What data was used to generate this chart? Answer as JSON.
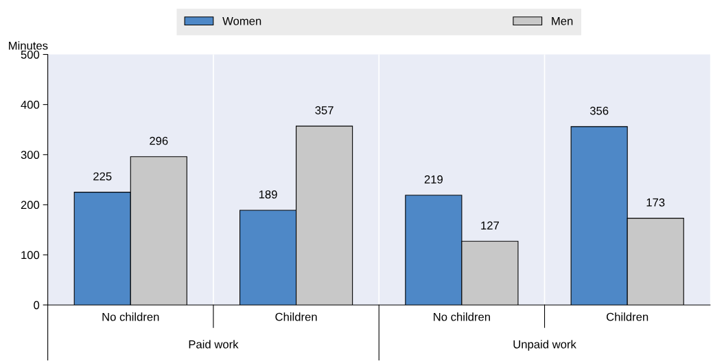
{
  "chart_data": {
    "type": "bar",
    "ylabel": "Minutes",
    "categories": [
      "No children",
      "Children",
      "No children",
      "Children"
    ],
    "annotations": [
      "Paid work",
      "Unpaid work"
    ],
    "series": [
      {
        "name": "Women",
        "color": "#4e88c7",
        "values": [
          225,
          189,
          219,
          356
        ]
      },
      {
        "name": "Men",
        "color": "#c8c8c8",
        "values": [
          296,
          357,
          127,
          173
        ]
      }
    ],
    "ylim": [
      0,
      500
    ],
    "yticks": [
      0,
      100,
      200,
      300,
      400,
      500
    ],
    "grid": "x",
    "legend": "top",
    "data_labels": true
  }
}
